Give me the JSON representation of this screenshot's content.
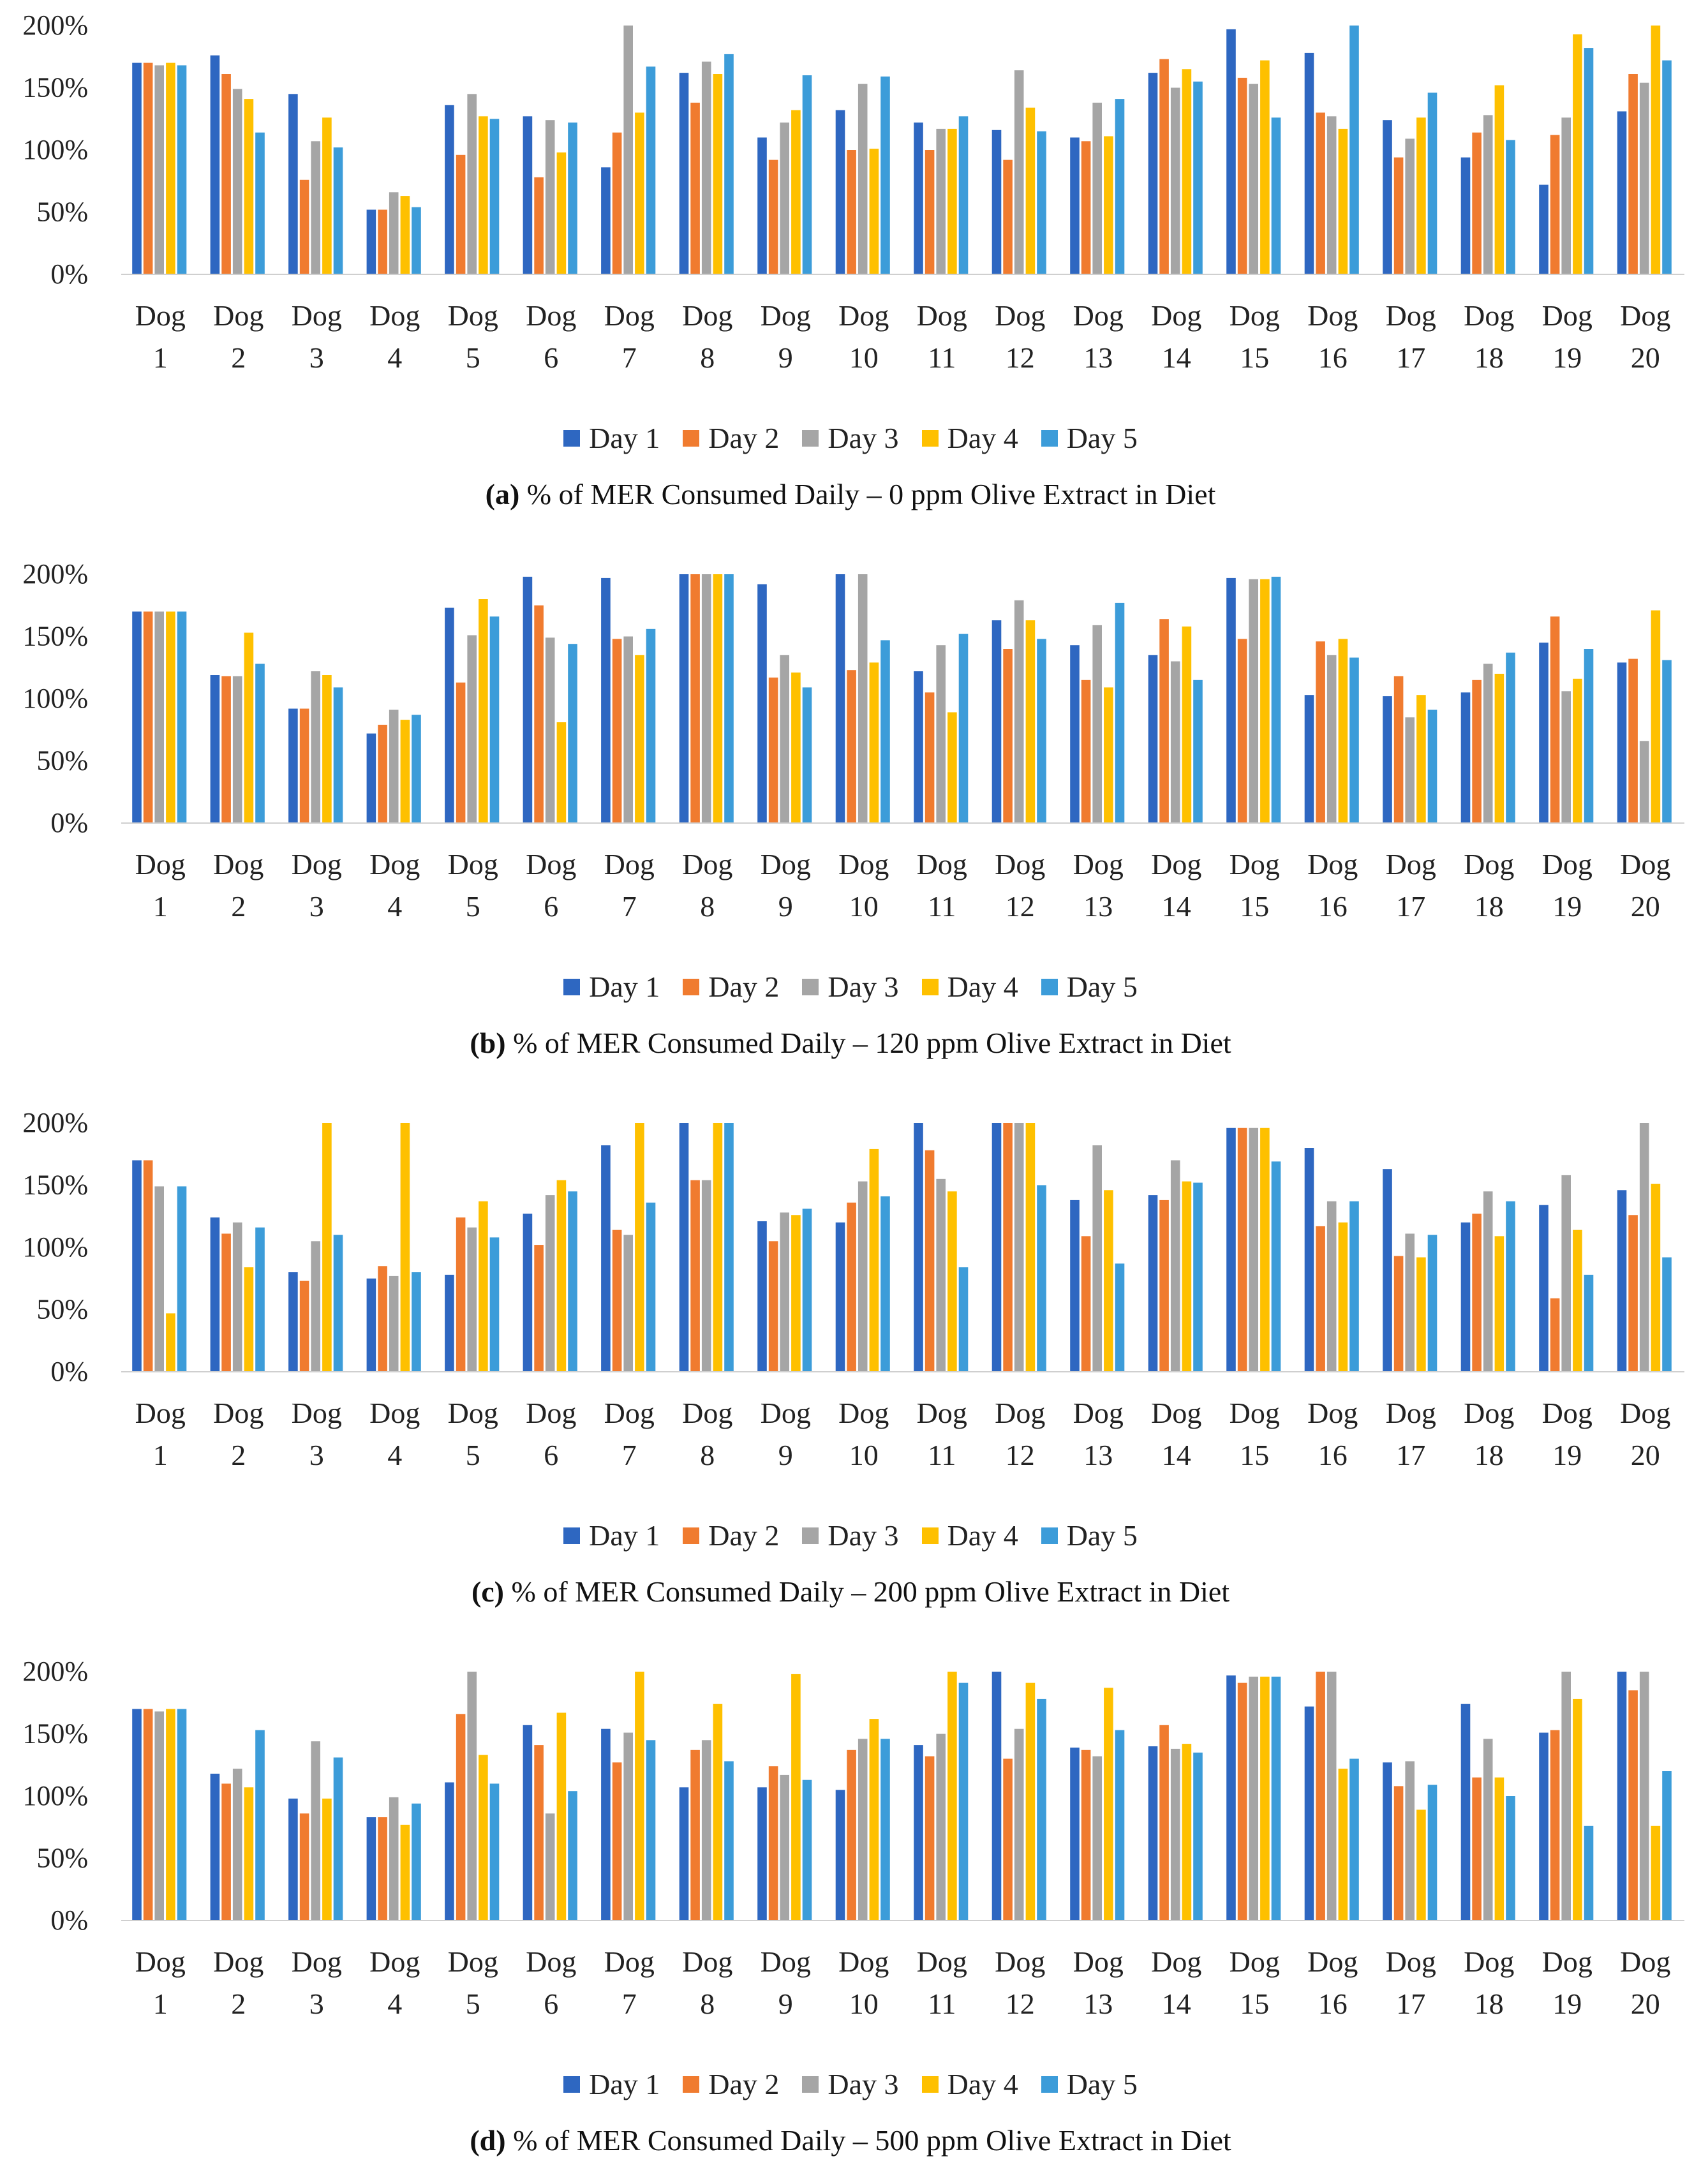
{
  "series_names": [
    "Day 1",
    "Day 2",
    "Day 3",
    "Day 4",
    "Day 5"
  ],
  "series_colors": [
    "#2E67C1",
    "#F07B2F",
    "#A5A5A5",
    "#FEC000",
    "#3C9CD9"
  ],
  "chart_data": [
    {
      "type": "bar",
      "panel_label": "(a)",
      "title": "% of MER Consumed Daily – 0 ppm Olive Extract in Diet",
      "categories": [
        "Dog 1",
        "Dog 2",
        "Dog 3",
        "Dog 4",
        "Dog 5",
        "Dog 6",
        "Dog 7",
        "Dog 8",
        "Dog 9",
        "Dog 10",
        "Dog 11",
        "Dog 12",
        "Dog 13",
        "Dog 14",
        "Dog 15",
        "Dog 16",
        "Dog 17",
        "Dog 18",
        "Dog 19",
        "Dog 20"
      ],
      "ylim": [
        0,
        200
      ],
      "yticks": [
        "0%",
        "50%",
        "100%",
        "150%",
        "200%"
      ],
      "series": [
        {
          "name": "Day 1",
          "values": [
            170,
            176,
            145,
            52,
            136,
            127,
            86,
            162,
            110,
            132,
            122,
            116,
            110,
            162,
            197,
            178,
            124,
            94,
            72,
            131
          ]
        },
        {
          "name": "Day 2",
          "values": [
            170,
            161,
            76,
            52,
            96,
            78,
            114,
            138,
            92,
            100,
            100,
            92,
            107,
            173,
            158,
            130,
            94,
            114,
            112,
            161
          ]
        },
        {
          "name": "Day 3",
          "values": [
            168,
            149,
            107,
            66,
            145,
            124,
            200,
            171,
            122,
            153,
            117,
            164,
            138,
            150,
            153,
            127,
            109,
            128,
            126,
            154
          ]
        },
        {
          "name": "Day 4",
          "values": [
            170,
            141,
            126,
            63,
            127,
            98,
            130,
            161,
            132,
            101,
            117,
            134,
            111,
            165,
            172,
            117,
            126,
            152,
            193,
            200
          ]
        },
        {
          "name": "Day 5",
          "values": [
            168,
            114,
            102,
            54,
            125,
            122,
            167,
            177,
            160,
            159,
            127,
            115,
            141,
            155,
            126,
            200,
            146,
            108,
            182,
            172
          ]
        }
      ]
    },
    {
      "type": "bar",
      "panel_label": "(b)",
      "title": "% of MER Consumed Daily – 120 ppm Olive Extract in Diet",
      "categories": [
        "Dog 1",
        "Dog 2",
        "Dog 3",
        "Dog 4",
        "Dog 5",
        "Dog 6",
        "Dog 7",
        "Dog 8",
        "Dog 9",
        "Dog 10",
        "Dog 11",
        "Dog 12",
        "Dog 13",
        "Dog 14",
        "Dog 15",
        "Dog 16",
        "Dog 17",
        "Dog 18",
        "Dog 19",
        "Dog 20"
      ],
      "ylim": [
        0,
        200
      ],
      "yticks": [
        "0%",
        "50%",
        "100%",
        "150%",
        "200%"
      ],
      "series": [
        {
          "name": "Day 1",
          "values": [
            170,
            119,
            92,
            72,
            173,
            198,
            197,
            200,
            192,
            200,
            122,
            163,
            143,
            135,
            197,
            103,
            102,
            105,
            145,
            129
          ]
        },
        {
          "name": "Day 2",
          "values": [
            170,
            118,
            92,
            79,
            113,
            175,
            148,
            200,
            117,
            123,
            105,
            140,
            115,
            164,
            148,
            146,
            118,
            115,
            166,
            132
          ]
        },
        {
          "name": "Day 3",
          "values": [
            170,
            118,
            122,
            91,
            151,
            149,
            150,
            200,
            135,
            200,
            143,
            179,
            159,
            130,
            196,
            135,
            85,
            128,
            106,
            66
          ]
        },
        {
          "name": "Day 4",
          "values": [
            170,
            153,
            119,
            83,
            180,
            81,
            135,
            200,
            121,
            129,
            89,
            163,
            109,
            158,
            196,
            148,
            103,
            120,
            116,
            171
          ]
        },
        {
          "name": "Day 5",
          "values": [
            170,
            128,
            109,
            87,
            166,
            144,
            156,
            200,
            109,
            147,
            152,
            148,
            177,
            115,
            198,
            133,
            91,
            137,
            140,
            131
          ]
        }
      ]
    },
    {
      "type": "bar",
      "panel_label": "(c)",
      "title": "% of MER Consumed Daily – 200 ppm Olive Extract in Diet",
      "categories": [
        "Dog 1",
        "Dog 2",
        "Dog 3",
        "Dog 4",
        "Dog 5",
        "Dog 6",
        "Dog 7",
        "Dog 8",
        "Dog 9",
        "Dog 10",
        "Dog 11",
        "Dog 12",
        "Dog 13",
        "Dog 14",
        "Dog 15",
        "Dog 16",
        "Dog 17",
        "Dog 18",
        "Dog 19",
        "Dog 20"
      ],
      "ylim": [
        0,
        200
      ],
      "yticks": [
        "0%",
        "50%",
        "100%",
        "150%",
        "200%"
      ],
      "series": [
        {
          "name": "Day 1",
          "values": [
            170,
            124,
            80,
            75,
            78,
            127,
            182,
            200,
            121,
            120,
            200,
            200,
            138,
            142,
            196,
            180,
            163,
            120,
            134,
            146
          ]
        },
        {
          "name": "Day 2",
          "values": [
            170,
            111,
            73,
            85,
            124,
            102,
            114,
            154,
            105,
            136,
            178,
            200,
            109,
            138,
            196,
            117,
            93,
            127,
            59,
            126
          ]
        },
        {
          "name": "Day 3",
          "values": [
            149,
            120,
            105,
            77,
            116,
            142,
            110,
            154,
            128,
            153,
            155,
            200,
            182,
            170,
            196,
            137,
            111,
            145,
            158,
            200
          ]
        },
        {
          "name": "Day 4",
          "values": [
            47,
            84,
            200,
            200,
            137,
            154,
            200,
            200,
            126,
            179,
            145,
            200,
            146,
            153,
            196,
            120,
            92,
            109,
            114,
            151
          ]
        },
        {
          "name": "Day 5",
          "values": [
            149,
            116,
            110,
            80,
            108,
            145,
            136,
            200,
            131,
            141,
            84,
            150,
            87,
            152,
            169,
            137,
            110,
            137,
            78,
            92
          ]
        }
      ]
    },
    {
      "type": "bar",
      "panel_label": "(d)",
      "title": "% of MER Consumed Daily – 500 ppm Olive Extract in Diet",
      "categories": [
        "Dog 1",
        "Dog 2",
        "Dog 3",
        "Dog 4",
        "Dog 5",
        "Dog 6",
        "Dog 7",
        "Dog 8",
        "Dog 9",
        "Dog 10",
        "Dog 11",
        "Dog 12",
        "Dog 13",
        "Dog 14",
        "Dog 15",
        "Dog 16",
        "Dog 17",
        "Dog 18",
        "Dog 19",
        "Dog 20"
      ],
      "ylim": [
        0,
        200
      ],
      "yticks": [
        "0%",
        "50%",
        "100%",
        "150%",
        "200%"
      ],
      "series": [
        {
          "name": "Day 1",
          "values": [
            170,
            118,
            98,
            83,
            111,
            157,
            154,
            107,
            107,
            105,
            141,
            200,
            139,
            140,
            197,
            172,
            127,
            174,
            151,
            200
          ]
        },
        {
          "name": "Day 2",
          "values": [
            170,
            110,
            86,
            83,
            166,
            141,
            127,
            137,
            124,
            137,
            132,
            130,
            137,
            157,
            191,
            200,
            108,
            115,
            153,
            185
          ]
        },
        {
          "name": "Day 3",
          "values": [
            168,
            122,
            144,
            99,
            200,
            86,
            151,
            145,
            117,
            146,
            150,
            154,
            132,
            138,
            196,
            200,
            128,
            146,
            200,
            200
          ]
        },
        {
          "name": "Day 4",
          "values": [
            170,
            107,
            98,
            77,
            133,
            167,
            200,
            174,
            198,
            162,
            200,
            191,
            187,
            142,
            196,
            122,
            89,
            115,
            178,
            76
          ]
        },
        {
          "name": "Day 5",
          "values": [
            170,
            153,
            131,
            94,
            110,
            104,
            145,
            128,
            113,
            146,
            191,
            178,
            153,
            135,
            196,
            130,
            109,
            100,
            76,
            120
          ]
        }
      ]
    }
  ]
}
